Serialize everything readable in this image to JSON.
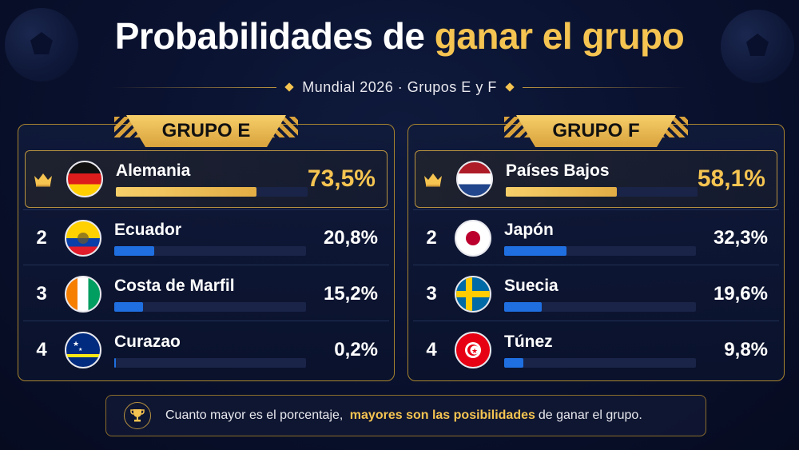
{
  "title": {
    "part1": "Probabilidades de",
    "highlight": "ganar el grupo"
  },
  "subtitle": "Mundial 2026 · Grupos E y F",
  "groups": [
    {
      "label": "GRUPO E",
      "teams": [
        {
          "rank": "",
          "name": "Alemania",
          "pct": "73,5%",
          "value": 73.5,
          "flag": "germany-flag-icon"
        },
        {
          "rank": "2",
          "name": "Ecuador",
          "pct": "20,8%",
          "value": 20.8,
          "flag": "ecuador-flag-icon"
        },
        {
          "rank": "3",
          "name": "Costa de Marfil",
          "pct": "15,2%",
          "value": 15.2,
          "flag": "ivory-coast-flag-icon"
        },
        {
          "rank": "4",
          "name": "Curazao",
          "pct": "0,2%",
          "value": 0.2,
          "flag": "curacao-flag-icon"
        }
      ]
    },
    {
      "label": "GRUPO F",
      "teams": [
        {
          "rank": "",
          "name": "Países Bajos",
          "pct": "58,1%",
          "value": 58.1,
          "flag": "netherlands-flag-icon"
        },
        {
          "rank": "2",
          "name": "Japón",
          "pct": "32,3%",
          "value": 32.3,
          "flag": "japan-flag-icon"
        },
        {
          "rank": "3",
          "name": "Suecia",
          "pct": "19,6%",
          "value": 19.6,
          "flag": "sweden-flag-icon"
        },
        {
          "rank": "4",
          "name": "Túnez",
          "pct": "9,8%",
          "value": 9.8,
          "flag": "tunisia-flag-icon"
        }
      ]
    }
  ],
  "footer": {
    "before": "Cuanto mayor es el porcentaje,",
    "highlight": "mayores son las posibilidades",
    "after": "de ganar el grupo."
  },
  "colors": {
    "gold": "#f5c451",
    "blue_bar": "#1f6fe0",
    "background": "#0a1230"
  }
}
